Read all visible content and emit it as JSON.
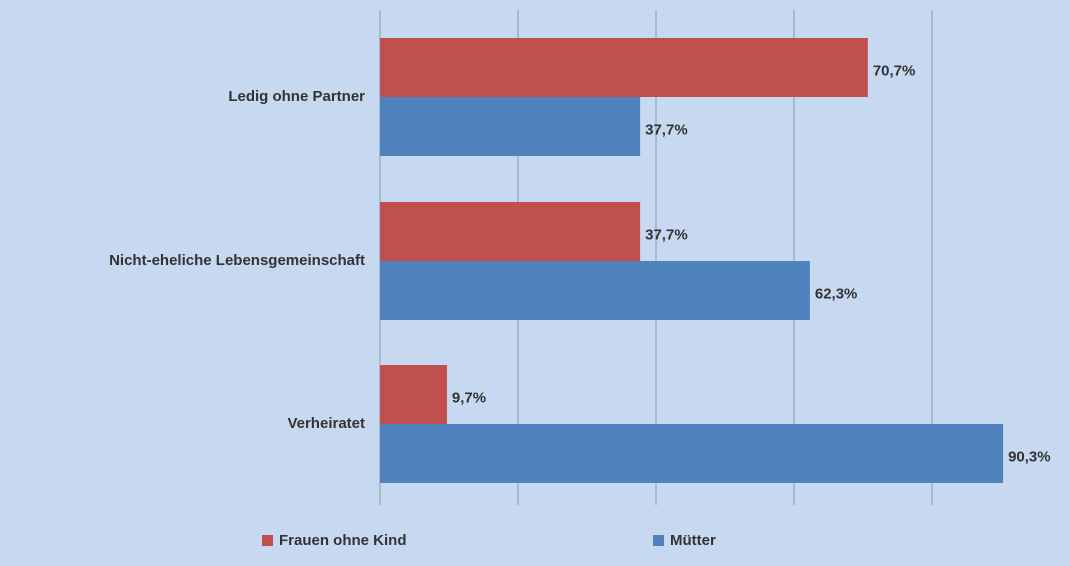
{
  "chart_data": {
    "type": "bar",
    "orientation": "horizontal",
    "categories": [
      "Ledig ohne Partner",
      "Nicht-eheliche Lebensgemeinschaft",
      "Verheiratet"
    ],
    "series": [
      {
        "name": "Frauen ohne Kind",
        "color": "#c0504d",
        "values": [
          70.7,
          37.7,
          9.7
        ],
        "value_labels": [
          "70,7%",
          "37,7%",
          "9,7%"
        ]
      },
      {
        "name": "Mütter",
        "color": "#4f81bd",
        "values": [
          37.7,
          62.3,
          90.3
        ],
        "value_labels": [
          "37,7%",
          "62,3%",
          "90,3%"
        ]
      }
    ],
    "xlim": [
      0,
      100
    ],
    "xticks": [
      0,
      20,
      40,
      60,
      80
    ],
    "grid": true,
    "legend": "bottom"
  }
}
